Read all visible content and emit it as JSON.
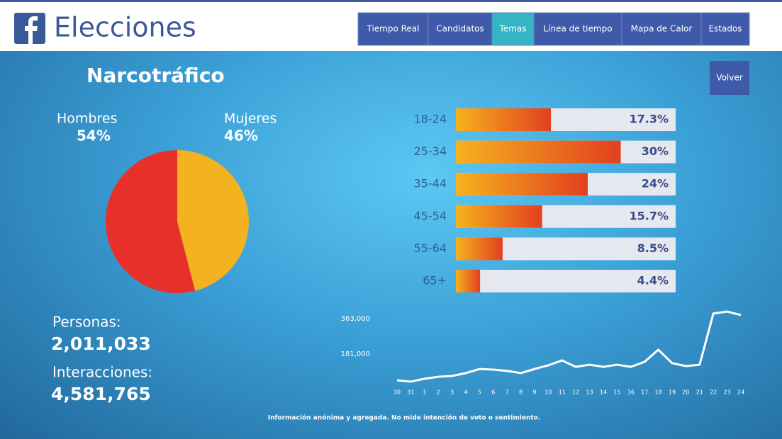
{
  "header": {
    "title": "Elecciones"
  },
  "nav": [
    "Tiempo Real",
    "Candidatos",
    "Temas",
    "Línea de tiempo",
    "Mapa de Calor",
    "Estados"
  ],
  "active_nav": 2,
  "topic": "Narcotráfico",
  "back_button": "Volver",
  "stats": [
    {
      "label": "Personas:",
      "value": "2,011,033"
    },
    {
      "label": "Interacciones:",
      "value": "4,581,765"
    }
  ],
  "footnote": "Información anónima y agregada. No mide intención de voto o sentimiento.",
  "chart_data": [
    {
      "type": "pie",
      "categories": [
        "Hombres",
        "Mujeres"
      ],
      "values": [
        54,
        46
      ],
      "value_labels": [
        "54%",
        "46%"
      ],
      "colors": [
        "#e8302a",
        "#f4b120"
      ]
    },
    {
      "type": "hbar",
      "categories": [
        "18-24",
        "25-34",
        "35-44",
        "45-54",
        "55-64",
        "65+"
      ],
      "values": [
        17.3,
        30,
        24,
        15.7,
        8.5,
        4.4
      ],
      "value_labels": [
        "17.3%",
        "30%",
        "24%",
        "15.7%",
        "8.5%",
        "4.4%"
      ],
      "xlim": [
        0,
        40
      ],
      "gradient": [
        "#f6b21f",
        "#e2401f"
      ],
      "track_color": "#e6e8f0"
    },
    {
      "type": "line",
      "categories": [
        "30",
        "31",
        "1",
        "2",
        "3",
        "4",
        "5",
        "6",
        "7",
        "8",
        "9",
        "10",
        "11",
        "12",
        "13",
        "14",
        "15",
        "16",
        "17",
        "18",
        "19",
        "20",
        "21",
        "22",
        "23",
        "24"
      ],
      "values": [
        47000,
        40000,
        55000,
        65000,
        69000,
        84000,
        105000,
        102000,
        95000,
        84000,
        105000,
        124000,
        149000,
        116000,
        127000,
        116000,
        127000,
        116000,
        142000,
        204000,
        135000,
        120000,
        127000,
        390000,
        400000,
        382000
      ],
      "ylim": [
        0,
        400000
      ],
      "yticks": [
        {
          "value": 181000,
          "label": "181,000"
        },
        {
          "value": 363000,
          "label": "363,000"
        }
      ],
      "color": "#ffffff"
    }
  ]
}
